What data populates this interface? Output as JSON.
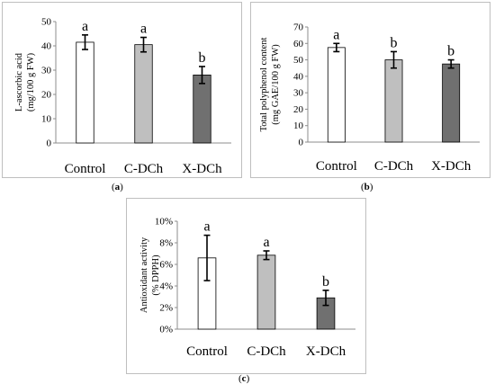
{
  "chart_data": [
    {
      "type": "bar",
      "panel": "(a)",
      "categories": [
        "Control",
        "C-DCh",
        "X-DCh"
      ],
      "values": [
        41.5,
        40.5,
        28
      ],
      "errors": [
        3,
        3,
        3.5
      ],
      "letters": [
        "a",
        "a",
        "b"
      ],
      "ylabel": [
        "L-ascorbic acid",
        "(mg/100 g FW)"
      ],
      "ylim": [
        0,
        50
      ],
      "yticks": [
        0,
        10,
        20,
        30,
        40,
        50
      ],
      "colors": [
        "#ffffff",
        "#bfbfbf",
        "#707070"
      ],
      "grid": false
    },
    {
      "type": "bar",
      "panel": "(b)",
      "categories": [
        "Control",
        "C-DCh",
        "X-DCh"
      ],
      "values": [
        57.5,
        50,
        47.5
      ],
      "errors": [
        2.5,
        5,
        2.5
      ],
      "letters": [
        "a",
        "b",
        "b"
      ],
      "ylabel": [
        "Total polyphenol content",
        "(mg GAE/100 g FW)"
      ],
      "ylim": [
        0,
        70
      ],
      "yticks": [
        0,
        10,
        20,
        30,
        40,
        50,
        60,
        70
      ],
      "colors": [
        "#ffffff",
        "#bfbfbf",
        "#707070"
      ],
      "grid": false
    },
    {
      "type": "bar",
      "panel": "(c)",
      "categories": [
        "Control",
        "C-DCh",
        "X-DCh"
      ],
      "values": [
        6.6,
        6.85,
        2.9
      ],
      "errors": [
        2.1,
        0.4,
        0.7
      ],
      "letters": [
        "a",
        "a",
        "b"
      ],
      "ylabel": [
        "Antioxidant activity",
        "(% DPPH)"
      ],
      "ylim": [
        0,
        10
      ],
      "yticks": [
        0,
        2,
        4,
        6,
        8,
        10
      ],
      "yunit": "%",
      "colors": [
        "#ffffff",
        "#bfbfbf",
        "#707070"
      ],
      "grid": false
    }
  ],
  "labels": {
    "a_open": "(",
    "a": "a",
    "a_close": ")",
    "b_open": "(",
    "b": "b",
    "b_close": ")",
    "c_open": "(",
    "c": "c",
    "c_close": ")"
  }
}
